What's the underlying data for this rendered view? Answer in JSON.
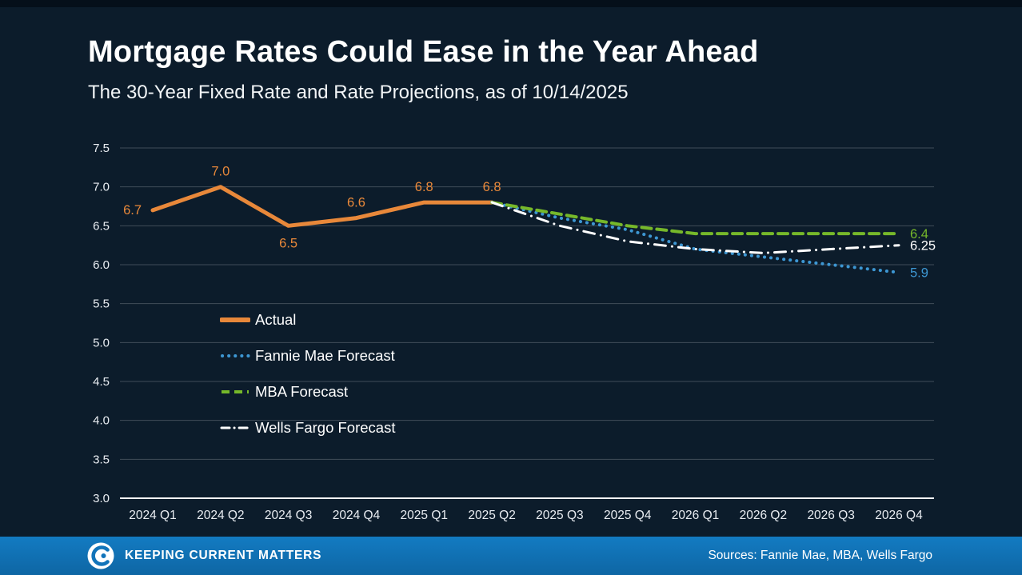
{
  "header": {
    "title": "Mortgage Rates Could Ease in the Year Ahead",
    "subtitle": "The 30-Year Fixed Rate and Rate Projections, as of 10/14/2025"
  },
  "chart_data": {
    "type": "line",
    "title": "Mortgage Rates Could Ease in the Year Ahead",
    "xlabel": "",
    "ylabel": "",
    "categories": [
      "2024 Q1",
      "2024 Q2",
      "2024 Q3",
      "2024 Q4",
      "2025 Q1",
      "2025 Q2",
      "2025 Q3",
      "2025 Q4",
      "2026 Q1",
      "2026 Q2",
      "2026 Q3",
      "2026 Q4"
    ],
    "ylim": [
      3.0,
      7.5
    ],
    "ytick_step": 0.5,
    "yticks": [
      "7.5",
      "7.0",
      "6.5",
      "6.0",
      "5.5",
      "5.0",
      "4.5",
      "4.0",
      "3.5",
      "3.0"
    ],
    "grid": true,
    "legend_position": "inside-left",
    "series": [
      {
        "name": "Actual",
        "style": "solid",
        "color": "#E8883A",
        "width": 5,
        "values": [
          6.7,
          7.0,
          6.5,
          6.6,
          6.8,
          6.8,
          null,
          null,
          null,
          null,
          null,
          null
        ],
        "point_labels": [
          "6.7",
          "7.0",
          "6.5",
          "6.6",
          "6.8",
          "6.8"
        ],
        "labels_below": [
          2
        ]
      },
      {
        "name": "Fannie Mae Forecast",
        "style": "dotted",
        "color": "#3D97D3",
        "width": 4,
        "values": [
          null,
          null,
          null,
          null,
          null,
          6.8,
          6.6,
          6.45,
          6.2,
          6.1,
          6.0,
          5.9
        ],
        "end_label": "5.9"
      },
      {
        "name": "MBA Forecast",
        "style": "dashed",
        "color": "#76B82A",
        "width": 4,
        "values": [
          null,
          null,
          null,
          null,
          null,
          6.8,
          6.65,
          6.5,
          6.4,
          6.4,
          6.4,
          6.4
        ],
        "end_label": "6.4"
      },
      {
        "name": "Wells Fargo Forecast",
        "style": "dashdot",
        "color": "#FFFFFF",
        "width": 3,
        "values": [
          null,
          null,
          null,
          null,
          null,
          6.8,
          6.5,
          6.3,
          6.2,
          6.15,
          6.2,
          6.25
        ],
        "end_label": "6.25"
      }
    ]
  },
  "footer": {
    "brand": "Keeping Current Matters",
    "sources": "Sources: Fannie Mae, MBA, Wells Fargo",
    "bar_color": "#1174BA"
  }
}
